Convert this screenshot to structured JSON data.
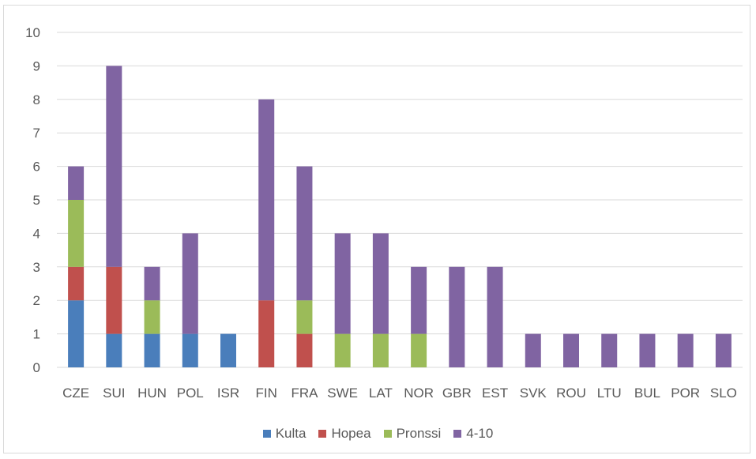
{
  "chart_data": {
    "type": "bar",
    "stacked": true,
    "categories": [
      "CZE",
      "SUI",
      "HUN",
      "POL",
      "ISR",
      "FIN",
      "FRA",
      "SWE",
      "LAT",
      "NOR",
      "GBR",
      "EST",
      "SVK",
      "ROU",
      "LTU",
      "BUL",
      "POR",
      "SLO"
    ],
    "series": [
      {
        "name": "Kulta",
        "color": "#4a7ebb",
        "values": [
          2,
          1,
          1,
          1,
          1,
          0,
          0,
          0,
          0,
          0,
          0,
          0,
          0,
          0,
          0,
          0,
          0,
          0
        ]
      },
      {
        "name": "Hopea",
        "color": "#c0504d",
        "values": [
          1,
          2,
          0,
          0,
          0,
          2,
          1,
          0,
          0,
          0,
          0,
          0,
          0,
          0,
          0,
          0,
          0,
          0
        ]
      },
      {
        "name": "Pronssi",
        "color": "#9bbb59",
        "values": [
          2,
          0,
          1,
          0,
          0,
          0,
          1,
          1,
          1,
          1,
          0,
          0,
          0,
          0,
          0,
          0,
          0,
          0
        ]
      },
      {
        "name": "4-10",
        "color": "#8064a2",
        "values": [
          1,
          6,
          1,
          3,
          0,
          6,
          4,
          3,
          3,
          2,
          3,
          3,
          1,
          1,
          1,
          1,
          1,
          1
        ]
      }
    ],
    "ylim": [
      0,
      10
    ],
    "yticks": [
      "0",
      "1",
      "2",
      "3",
      "4",
      "5",
      "6",
      "7",
      "8",
      "9",
      "10"
    ],
    "grid": true,
    "legend": "bottom"
  }
}
